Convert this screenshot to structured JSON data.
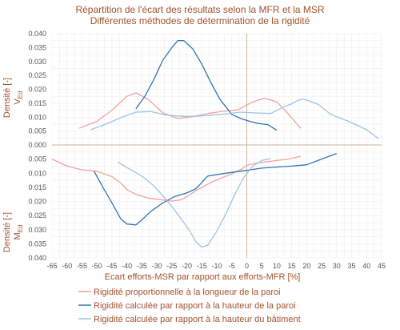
{
  "chart_data": {
    "type": "line",
    "title": "Répartition de l'écart des résultats selon la MFR et la MSR",
    "subtitle": "Différentes méthodes de détermination de la rigidité",
    "xlabel": "Ecart efforts-MSR par rapport aux efforts-MFR [%]",
    "ylabel_top": "Densité [-]",
    "ylabel_top_sub": "V",
    "ylabel_top_subscript": "Ed",
    "ylabel_bottom": "Densité [-]",
    "ylabel_bottom_sub": "M",
    "ylabel_bottom_subscript": "Ed",
    "xlim": [
      -65,
      45
    ],
    "ylim_top": [
      0,
      0.04
    ],
    "ylim_bottom": [
      0,
      0.04
    ],
    "x_ticks": [
      "-65",
      "-60",
      "-55",
      "-50",
      "-45",
      "-40",
      "-35",
      "-30",
      "-25",
      "-20",
      "-15",
      "-10",
      "-5",
      "0",
      "5",
      "10",
      "15",
      "20",
      "25",
      "30",
      "35",
      "40",
      "45"
    ],
    "y_ticks_top": [
      "0.040",
      "0.035",
      "0.030",
      "0.025",
      "0.020",
      "0.015",
      "0.010",
      "0.005",
      "0.000"
    ],
    "y_ticks_bottom": [
      "0.005",
      "0.010",
      "0.015",
      "0.020",
      "0.025",
      "0.030",
      "0.035",
      "0.040"
    ],
    "grid": true,
    "legend_position": "bottom",
    "colors": {
      "proportional": "#f4a0a0",
      "wall_height": "#2e75b6",
      "building_height": "#9dc3e6",
      "axis_text": "#a0522d",
      "tick_red": "#cc0000",
      "grid": "#eeeeee",
      "zero_line": "#c8b49a"
    },
    "series": [
      {
        "name": "Rigidité proportionnelle à la longueur de la paroi",
        "key": "proportional",
        "top": {
          "x": [
            -56,
            -50,
            -45,
            -40,
            -37,
            -33,
            -28,
            -23,
            -18,
            -13,
            -8,
            -3,
            2,
            6,
            10,
            14,
            18
          ],
          "y": [
            0.006,
            0.0085,
            0.0125,
            0.0175,
            0.0187,
            0.0165,
            0.0115,
            0.0095,
            0.0102,
            0.0113,
            0.0121,
            0.0126,
            0.0155,
            0.0168,
            0.0155,
            0.011,
            0.006
          ]
        },
        "bottom": {
          "x": [
            -65,
            -60,
            -55,
            -50,
            -45,
            -42,
            -40,
            -37,
            -33,
            -30,
            -25,
            -22,
            -20,
            -17,
            -15,
            -12,
            -8,
            -5,
            -2,
            0,
            3,
            6,
            10,
            14,
            18
          ],
          "y": [
            0.005,
            0.0075,
            0.0088,
            0.0093,
            0.0112,
            0.0135,
            0.0158,
            0.0175,
            0.0188,
            0.0192,
            0.0199,
            0.0194,
            0.0183,
            0.0162,
            0.015,
            0.0133,
            0.0115,
            0.0102,
            0.0087,
            0.0072,
            0.0065,
            0.006,
            0.0055,
            0.005,
            0.004
          ]
        }
      },
      {
        "name": "Rigidité calculée par rapport à la hauteur de la paroi",
        "key": "wall_height",
        "top": {
          "x": [
            -37,
            -34,
            -31,
            -28,
            -25,
            -23,
            -21,
            -18,
            -15,
            -12,
            -9,
            -5,
            -2,
            1,
            4,
            7,
            10
          ],
          "y": [
            0.013,
            0.0175,
            0.0235,
            0.0305,
            0.035,
            0.0375,
            0.0375,
            0.0345,
            0.029,
            0.0225,
            0.0165,
            0.011,
            0.0095,
            0.0085,
            0.0077,
            0.0073,
            0.0053
          ]
        },
        "bottom": {
          "x": [
            -51,
            -48,
            -45,
            -42,
            -40,
            -37,
            -35,
            -32,
            -28,
            -24,
            -20,
            -17,
            -15,
            -14,
            -13,
            -10,
            -5,
            0,
            5,
            10,
            15,
            20,
            25,
            30
          ],
          "y": [
            0.0092,
            0.015,
            0.0205,
            0.0262,
            0.028,
            0.0283,
            0.0265,
            0.0235,
            0.0205,
            0.0182,
            0.017,
            0.0155,
            0.0133,
            0.012,
            0.011,
            0.0105,
            0.0097,
            0.009,
            0.0082,
            0.0078,
            0.0075,
            0.007,
            0.005,
            0.003
          ]
        }
      },
      {
        "name": "Rigidité calculée par rapport à la hauteur du bâtiment",
        "key": "building_height",
        "top": {
          "x": [
            -52,
            -47,
            -42,
            -37,
            -32,
            -27,
            -22,
            -17,
            -12,
            -7,
            -2,
            3,
            8,
            12,
            15,
            17,
            19,
            21,
            24,
            28,
            34,
            40,
            44
          ],
          "y": [
            0.0055,
            0.0075,
            0.0098,
            0.0118,
            0.012,
            0.0108,
            0.0103,
            0.0103,
            0.0107,
            0.0112,
            0.0118,
            0.0115,
            0.0113,
            0.0135,
            0.0148,
            0.016,
            0.0165,
            0.0158,
            0.0145,
            0.011,
            0.0085,
            0.0055,
            0.0022
          ]
        },
        "bottom": {
          "x": [
            -43,
            -40,
            -37,
            -34,
            -31,
            -28,
            -25,
            -22,
            -19,
            -17,
            -15,
            -13,
            -10,
            -7,
            -4,
            -1,
            2,
            5,
            8
          ],
          "y": [
            0.006,
            0.008,
            0.0098,
            0.0118,
            0.0145,
            0.018,
            0.0218,
            0.026,
            0.0305,
            0.0342,
            0.0362,
            0.0355,
            0.0305,
            0.0245,
            0.0175,
            0.0115,
            0.0075,
            0.0055,
            0.0048
          ]
        }
      }
    ]
  }
}
